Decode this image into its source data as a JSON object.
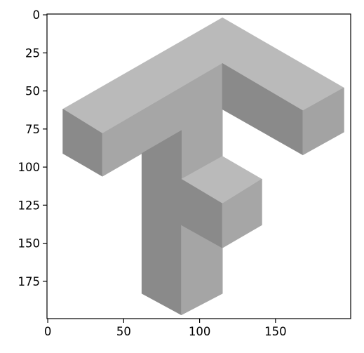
{
  "chart_data": {
    "type": "image",
    "title": "",
    "xlabel": "",
    "ylabel": "",
    "xlim": [
      -0.5,
      199.5
    ],
    "ylim": [
      199.5,
      -0.5
    ],
    "x_ticks": [
      0,
      50,
      100,
      150
    ],
    "y_ticks": [
      0,
      25,
      50,
      75,
      100,
      125,
      150,
      175
    ],
    "grid": false,
    "image": {
      "description": "isometric grayscale 3D letter F logo",
      "colormap": "grayscale",
      "faces": [
        {
          "name": "top-arm-top",
          "shade": "#bababa",
          "points": [
            [
              10,
              62
            ],
            [
              115,
              2
            ],
            [
              195,
              48
            ],
            [
              168,
              63
            ],
            [
              115,
              32
            ],
            [
              88,
              49
            ],
            [
              36,
              78
            ]
          ]
        },
        {
          "name": "top-arm-left-end",
          "shade": "#8a8a8a",
          "points": [
            [
              10,
              62
            ],
            [
              36,
              78
            ],
            [
              36,
              106
            ],
            [
              10,
              91
            ]
          ]
        },
        {
          "name": "top-arm-front",
          "shade": "#a6a6a6",
          "points": [
            [
              36,
              78
            ],
            [
              115,
              32
            ],
            [
              115,
              93
            ],
            [
              88,
              108
            ],
            [
              88,
              76
            ],
            [
              62,
              91
            ],
            [
              36,
              106
            ]
          ]
        },
        {
          "name": "right-arm-under",
          "shade": "#8a8a8a",
          "points": [
            [
              115,
              32
            ],
            [
              168,
              63
            ],
            [
              168,
              92
            ],
            [
              115,
              62
            ]
          ]
        },
        {
          "name": "right-arm-end",
          "shade": "#a3a3a3",
          "points": [
            [
              168,
              63
            ],
            [
              195,
              48
            ],
            [
              195,
              77
            ],
            [
              168,
              92
            ]
          ]
        },
        {
          "name": "stem-left",
          "shade": "#8a8a8a",
          "points": [
            [
              62,
              91
            ],
            [
              88,
              76
            ],
            [
              88,
              197
            ],
            [
              62,
              183
            ]
          ]
        },
        {
          "name": "stem-right",
          "shade": "#a5a5a5",
          "points": [
            [
              88,
              138
            ],
            [
              115,
              153
            ],
            [
              115,
              183
            ],
            [
              88,
              197
            ]
          ]
        },
        {
          "name": "middle-arm-top",
          "shade": "#bababa",
          "points": [
            [
              88,
              108
            ],
            [
              115,
              93
            ],
            [
              141,
              108
            ],
            [
              115,
              124
            ]
          ]
        },
        {
          "name": "middle-arm-side",
          "shade": "#8a8a8a",
          "points": [
            [
              88,
              108
            ],
            [
              115,
              124
            ],
            [
              115,
              153
            ],
            [
              88,
              138
            ]
          ]
        },
        {
          "name": "middle-arm-end",
          "shade": "#a6a6a6",
          "points": [
            [
              115,
              124
            ],
            [
              141,
              108
            ],
            [
              141,
              138
            ],
            [
              115,
              153
            ]
          ]
        }
      ]
    }
  }
}
